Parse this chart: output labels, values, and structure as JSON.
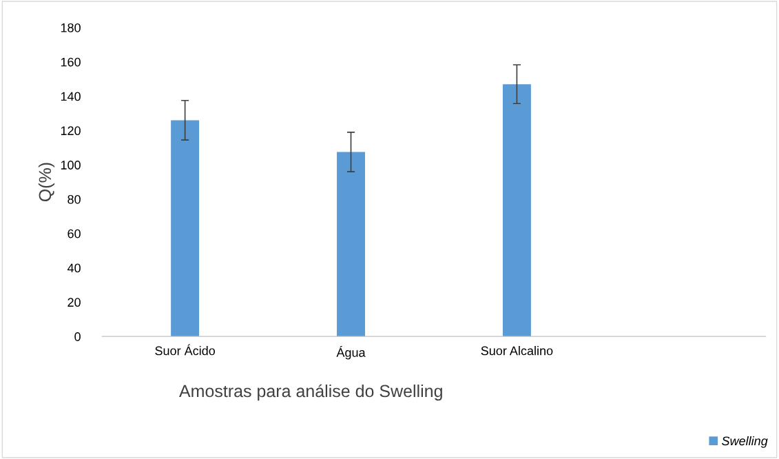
{
  "chart_data": {
    "type": "bar",
    "xlabel": "Amostras para análise do Swelling",
    "ylabel": "Q(%)",
    "categories": [
      "Suor Ácido",
      "Água",
      "Suor Alcalino",
      null
    ],
    "series": [
      {
        "name": "Swelling",
        "color": "#5b9bd5",
        "values": [
          126,
          107.5,
          147,
          null
        ],
        "errors": [
          11.5,
          11.5,
          11.3,
          null
        ]
      }
    ],
    "ylim": [
      0,
      180
    ],
    "yticks": [
      0,
      20,
      40,
      60,
      80,
      100,
      120,
      140,
      160,
      180
    ],
    "grid": false,
    "legend": "bottom right"
  }
}
